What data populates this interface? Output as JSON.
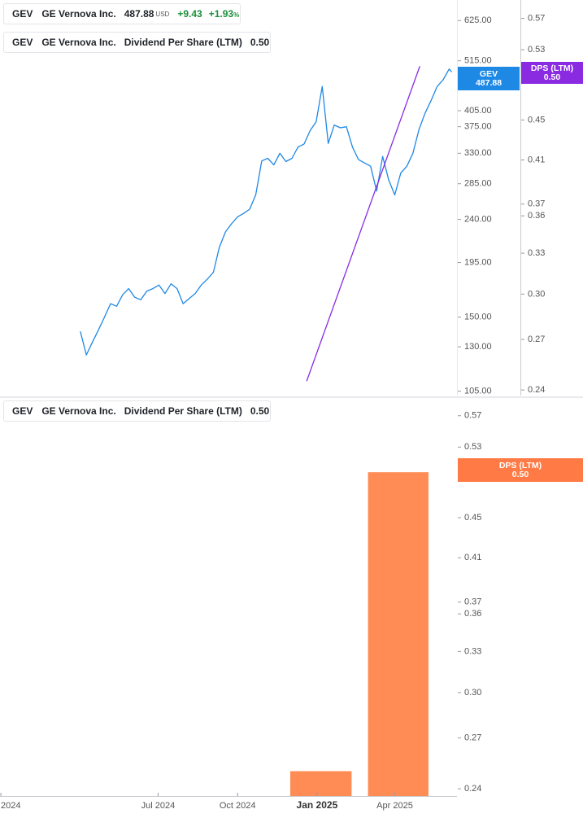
{
  "colors": {
    "price_line": "#1e88e5",
    "dps_line": "#8a2be2",
    "dps_bar": "#ff8c55",
    "price_tag": "#1e88e5",
    "dps_tag_top": "#8a2be2",
    "dps_tag_bottom": "#ff7a45",
    "up": "#1a8f3c"
  },
  "legend_top_price": {
    "symbol": "GEV",
    "name": "GE Vernova Inc.",
    "price": "487.88",
    "currency": "USD",
    "change": "+9.43",
    "change_pct": "+1.93",
    "pct_sign": "%"
  },
  "legend_top_dps": {
    "symbol": "GEV",
    "name": "GE Vernova Inc.",
    "metric": "Dividend Per Share (LTM)",
    "value": "0.50"
  },
  "legend_bottom_dps": {
    "symbol": "GEV",
    "name": "GE Vernova Inc.",
    "metric": "Dividend Per Share (LTM)",
    "value": "0.50"
  },
  "tags": {
    "price_symbol": "GEV",
    "price_value": "487.88",
    "dps_label": "DPS (LTM)",
    "dps_value": "0.50"
  },
  "chart_data": [
    {
      "type": "line",
      "title": "",
      "y_scale": "log",
      "x_ticks": [
        "2024",
        "Jul 2024",
        "Oct 2024",
        "Jan 2025",
        "Apr 2025"
      ],
      "y_ticks_price": [
        625,
        515,
        405,
        375,
        330,
        285,
        240,
        195,
        150,
        130,
        105
      ],
      "y_ticks_price_labels": [
        "625.00",
        "515.00",
        "405.00",
        "375.00",
        "330.00",
        "285.00",
        "240.00",
        "195.00",
        "150.00",
        "130.00",
        "105.00"
      ],
      "y_ticks_dps": [
        0.57,
        0.53,
        0.45,
        0.41,
        0.37,
        0.36,
        0.33,
        0.3,
        0.27,
        0.24
      ],
      "y_ticks_dps_labels": [
        "0.57",
        "0.53",
        "0.45",
        "0.41",
        "0.37",
        "0.36",
        "0.33",
        "0.30",
        "0.27",
        "0.24"
      ],
      "ylim_price": [
        102,
        690
      ],
      "ylim_dps": [
        0.236,
        0.595
      ],
      "series": [
        {
          "axis": "price",
          "x": [
            "2024-04-02",
            "2024-04-09",
            "2024-04-16",
            "2024-04-23",
            "2024-04-30",
            "2024-05-07",
            "2024-05-14",
            "2024-05-21",
            "2024-05-28",
            "2024-06-04",
            "2024-06-11",
            "2024-06-18",
            "2024-06-25",
            "2024-07-02",
            "2024-07-09",
            "2024-07-16",
            "2024-07-23",
            "2024-07-30",
            "2024-08-06",
            "2024-08-13",
            "2024-08-20",
            "2024-08-27",
            "2024-09-03",
            "2024-09-10",
            "2024-09-17",
            "2024-09-24",
            "2024-10-01",
            "2024-10-08",
            "2024-10-15",
            "2024-10-22",
            "2024-10-29",
            "2024-11-05",
            "2024-11-12",
            "2024-11-19",
            "2024-11-26",
            "2024-12-03",
            "2024-12-10",
            "2024-12-17",
            "2024-12-24",
            "2024-12-31",
            "2025-01-07",
            "2025-01-14",
            "2025-01-21",
            "2025-01-28",
            "2025-02-04",
            "2025-02-11",
            "2025-02-18",
            "2025-02-25",
            "2025-03-04",
            "2025-03-11",
            "2025-03-18",
            "2025-03-25",
            "2025-04-01",
            "2025-04-08",
            "2025-04-15",
            "2025-04-22",
            "2025-04-29",
            "2025-05-06",
            "2025-05-13",
            "2025-05-20",
            "2025-05-27",
            "2025-06-03",
            "2025-06-06"
          ],
          "values": [
            140,
            125,
            133,
            141,
            150,
            160,
            158,
            167,
            172,
            165,
            163,
            170,
            172,
            175,
            168,
            176,
            172,
            160,
            164,
            168,
            175,
            180,
            186,
            210,
            226,
            235,
            243,
            247,
            252,
            270,
            318,
            322,
            312,
            330,
            317,
            322,
            340,
            345,
            368,
            384,
            455,
            346,
            378,
            373,
            375,
            340,
            320,
            315,
            310,
            275,
            325,
            290,
            270,
            300,
            310,
            330,
            370,
            400,
            425,
            455,
            470,
            495,
            487.88
          ]
        },
        {
          "axis": "dps",
          "x": [
            "2024-12-20",
            "2025-04-30"
          ],
          "values": [
            0.245,
            0.51
          ]
        }
      ]
    },
    {
      "type": "bar",
      "title": "",
      "y_scale": "log",
      "ylim_dps": [
        0.236,
        0.595
      ],
      "x_ticks": [
        "2024",
        "Jul 2024",
        "Oct 2024",
        "Jan 2025",
        "Apr 2025"
      ],
      "bars": [
        {
          "start": "2024-12-01",
          "end": "2025-02-10",
          "value": 0.25
        },
        {
          "start": "2025-03-01",
          "end": "2025-05-10",
          "value": 0.5
        }
      ]
    }
  ]
}
